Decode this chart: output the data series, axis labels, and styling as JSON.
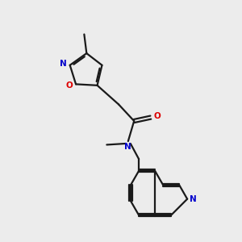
{
  "bg_color": "#ececec",
  "bond_color": "#1a1a1a",
  "n_color": "#0000cc",
  "o_color": "#dd0000",
  "lw": 1.6,
  "fs": 7.5,
  "xlim": [
    0.0,
    10.0
  ],
  "ylim": [
    0.5,
    10.5
  ]
}
